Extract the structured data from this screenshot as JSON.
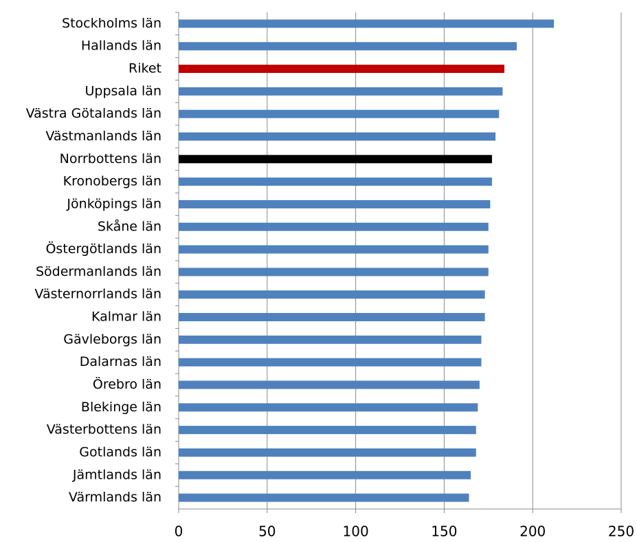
{
  "chart_data": {
    "type": "bar",
    "orientation": "horizontal",
    "categories": [
      "Stockholms län",
      "Hallands län",
      "Riket",
      "Uppsala län",
      "Västra Götalands län",
      "Västmanlands län",
      "Norrbottens län",
      "Kronobergs län",
      "Jönköpings län",
      "Skåne län",
      "Östergötlands län",
      "Södermanlands län",
      "Västernorrlands län",
      "Kalmar län",
      "Gävleborgs län",
      "Dalarnas län",
      "Örebro län",
      "Blekinge län",
      "Västerbottens län",
      "Gotlands län",
      "Jämtlands län",
      "Värmlands län"
    ],
    "values": [
      212,
      191,
      184,
      183,
      181,
      179,
      177,
      177,
      176,
      175,
      175,
      175,
      173,
      173,
      171,
      171,
      170,
      169,
      168,
      168,
      165,
      164
    ],
    "colors": [
      "#4f81bd",
      "#4f81bd",
      "#c00000",
      "#4f81bd",
      "#4f81bd",
      "#4f81bd",
      "#000000",
      "#4f81bd",
      "#4f81bd",
      "#4f81bd",
      "#4f81bd",
      "#4f81bd",
      "#4f81bd",
      "#4f81bd",
      "#4f81bd",
      "#4f81bd",
      "#4f81bd",
      "#4f81bd",
      "#4f81bd",
      "#4f81bd",
      "#4f81bd",
      "#4f81bd"
    ],
    "xlim": [
      0,
      250
    ],
    "xticks": [
      0,
      50,
      100,
      150,
      200,
      250
    ],
    "grid": true
  }
}
